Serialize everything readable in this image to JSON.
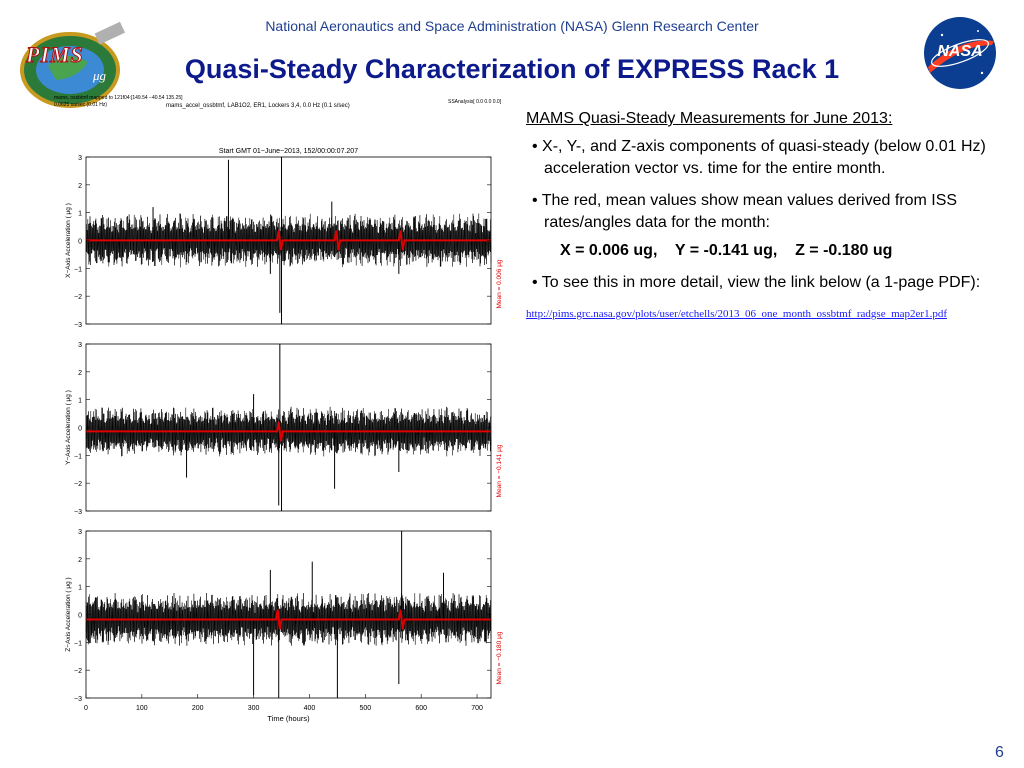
{
  "header": {
    "organization": "National Aeronautics and Space Administration (NASA) Glenn Research Center",
    "title": "Quasi-Steady Characterization of EXPRESS Rack 1",
    "pims_logo_text": "PIMS",
    "pims_logo_sub": "μg",
    "nasa_logo_text": "NASA"
  },
  "figure_header": {
    "line1": "mams, ossbtmf  mapped to 121f04:[149.54 −40.54 135.25]",
    "line2": "0.0625 sa/sec (0.01 Hz)",
    "center": "mams_accel_ossbtmf, LAB1O2, ER1, Lockers 3,4, 0.0 Hz (0.1 s/sec)",
    "right": "SSAnalysis[ 0.0  0.0  0.0]"
  },
  "chart_data": [
    {
      "type": "line",
      "title": "Start GMT 01−June−2013, 152/00:00:07.207",
      "xlabel": "",
      "ylabel": "X−Axis Acceleration ( μg )",
      "xlim": [
        0,
        725
      ],
      "ylim": [
        -3,
        3
      ],
      "yticks": [
        3,
        2,
        1,
        0,
        -1,
        -2,
        -3
      ],
      "xticks": [],
      "mean_label": "Mean = 0.006 μg",
      "mean": 0.006,
      "band_amplitude": 0.7,
      "noise_seed": 11,
      "spikes": [
        {
          "x": 255,
          "y": 2.9
        },
        {
          "x": 350,
          "y": 3.0
        },
        {
          "x": 350,
          "y": -3.0
        },
        {
          "x": 347,
          "y": -2.6
        },
        {
          "x": 330,
          "y": -1.2
        },
        {
          "x": 440,
          "y": 1.4
        },
        {
          "x": 560,
          "y": -1.2
        },
        {
          "x": 120,
          "y": 1.2
        }
      ],
      "red_bumps": [
        347,
        450,
        565
      ]
    },
    {
      "type": "line",
      "title": "",
      "xlabel": "",
      "ylabel": "Y−Axis Acceleration ( μg )",
      "xlim": [
        0,
        725
      ],
      "ylim": [
        -3,
        3
      ],
      "yticks": [
        3,
        2,
        1,
        0,
        -1,
        -2,
        -3
      ],
      "xticks": [],
      "mean_label": "Mean = −0.141 μg",
      "mean": -0.141,
      "band_amplitude": 0.65,
      "noise_seed": 23,
      "spikes": [
        {
          "x": 347,
          "y": 3.0
        },
        {
          "x": 350,
          "y": -3.0
        },
        {
          "x": 345,
          "y": -2.8
        },
        {
          "x": 180,
          "y": -1.8
        },
        {
          "x": 445,
          "y": -2.2
        },
        {
          "x": 560,
          "y": -1.6
        },
        {
          "x": 300,
          "y": 1.2
        }
      ],
      "red_bumps": [
        347
      ]
    },
    {
      "type": "line",
      "title": "",
      "xlabel": "Time (hours)",
      "ylabel": "Z−Axis Acceleration ( μg )",
      "xlim": [
        0,
        725
      ],
      "ylim": [
        -3,
        3
      ],
      "yticks": [
        3,
        2,
        1,
        0,
        -1,
        -2,
        -3
      ],
      "xticks": [
        0,
        100,
        200,
        300,
        400,
        500,
        600,
        700
      ],
      "mean_label": "Mean = −0.180 μg",
      "mean": -0.18,
      "band_amplitude": 0.7,
      "noise_seed": 37,
      "spikes": [
        {
          "x": 565,
          "y": 3.0
        },
        {
          "x": 450,
          "y": -3.0
        },
        {
          "x": 300,
          "y": -2.9
        },
        {
          "x": 345,
          "y": -3.0
        },
        {
          "x": 560,
          "y": -2.5
        },
        {
          "x": 405,
          "y": 1.9
        },
        {
          "x": 330,
          "y": 1.6
        },
        {
          "x": 640,
          "y": 1.5
        }
      ],
      "red_bumps": [
        345,
        565
      ]
    }
  ],
  "right_panel": {
    "heading": "MAMS Quasi-Steady Measurements for June 2013:",
    "bullets": [
      "• X-, Y-, and Z-axis components of quasi-steady (below 0.01 Hz) acceleration vector vs. time for the entire month.",
      "• The red, mean values show mean values derived from ISS rates/angles data for the month:",
      "• To see this in more detail, view the link below (a 1-page PDF):"
    ],
    "means": "X = 0.006 ug,    Y = -0.141 ug,    Z = -0.180 ug",
    "link": "http://pims.grc.nasa.gov/plots/user/etchells/2013_06_one_month_ossbtmf_radgse_map2er1.pdf"
  },
  "page_number": "6",
  "colors": {
    "title": "#0d1a8c",
    "header": "#1f3f8f",
    "mean_line": "#e00000",
    "signal": "#000000",
    "link": "#1a1aff"
  }
}
